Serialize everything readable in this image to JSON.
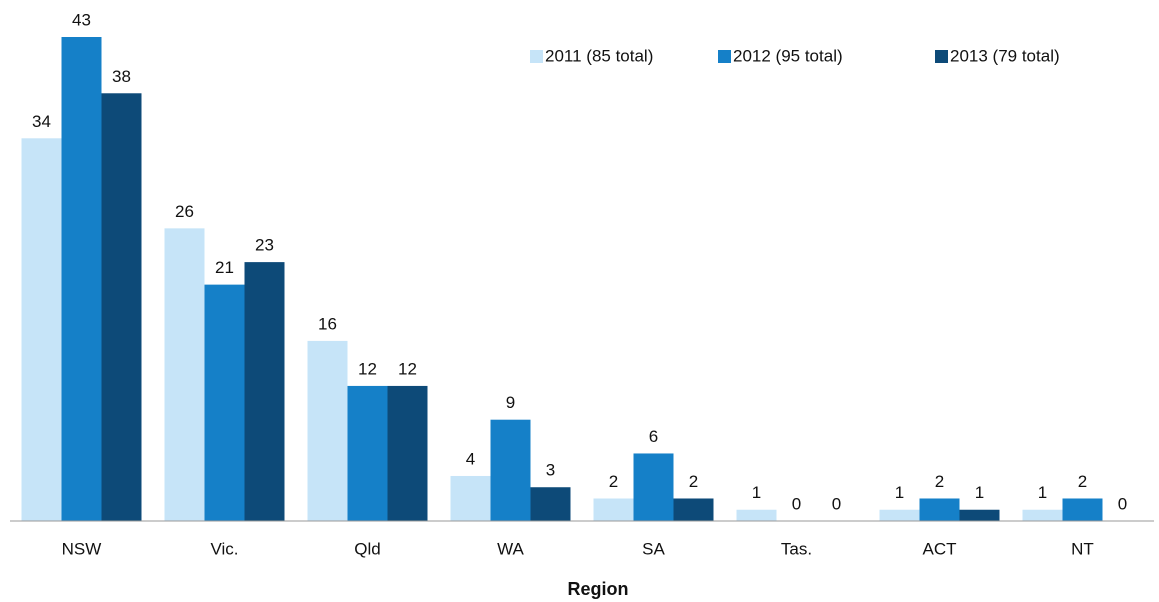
{
  "chart_data": {
    "type": "bar",
    "x_label": "Region",
    "categories": [
      "NSW",
      "Vic.",
      "Qld",
      "WA",
      "SA",
      "Tas.",
      "ACT",
      "NT"
    ],
    "series": [
      {
        "name": "2011 (85 total)",
        "color": "#c6e4f8",
        "values": [
          34,
          26,
          16,
          4,
          2,
          1,
          1,
          1
        ]
      },
      {
        "name": "2012 (95 total)",
        "color": "#1580c8",
        "values": [
          43,
          21,
          12,
          9,
          6,
          0,
          2,
          2
        ]
      },
      {
        "name": "2013 (79 total)",
        "color": "#0d4a78",
        "values": [
          38,
          23,
          12,
          3,
          2,
          0,
          1,
          0
        ]
      }
    ],
    "legend": "upper right"
  }
}
